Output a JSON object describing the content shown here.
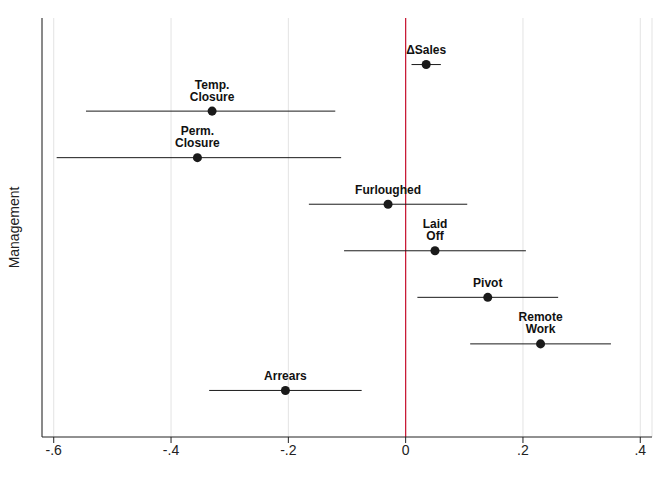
{
  "chart_data": {
    "type": "scatter",
    "y_label": "Management",
    "categories": [
      "ΔSales",
      "Temp. Closure",
      "Perm. Closure",
      "Furloughed",
      "Laid Off",
      "Pivot",
      "Remote Work",
      "Arrears"
    ],
    "values": [
      0.035,
      -0.33,
      -0.355,
      -0.03,
      0.05,
      0.14,
      0.23,
      -0.205
    ],
    "ci_low": [
      0.01,
      -0.545,
      -0.595,
      -0.165,
      -0.105,
      0.02,
      0.11,
      -0.335
    ],
    "ci_high": [
      0.06,
      -0.12,
      -0.11,
      0.105,
      0.205,
      0.26,
      0.35,
      -0.075
    ],
    "color": "#1a1a1a",
    "xlim": [
      -0.62,
      0.42
    ],
    "xticks": [
      {
        "value": -0.6,
        "label": "-.6"
      },
      {
        "value": -0.4,
        "label": "-.4"
      },
      {
        "value": -0.2,
        "label": "-.2"
      },
      0,
      {
        "value": 0.2,
        "label": ".2"
      },
      {
        "value": 0.4,
        "label": ".4"
      }
    ],
    "grid": true,
    "tick_labels": "x",
    "reference_line": {
      "x": 0,
      "color": "#c8102e"
    }
  }
}
